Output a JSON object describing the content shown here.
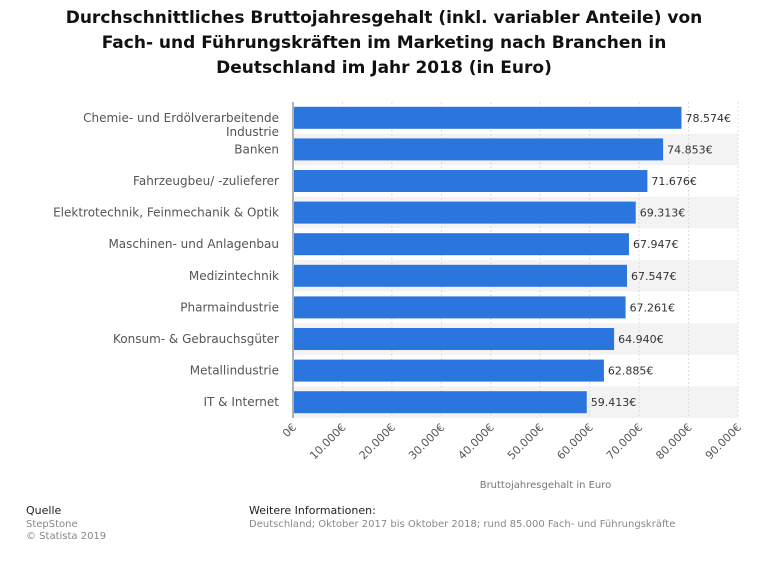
{
  "title_lines": [
    "Durchschnittliches Bruttojahresgehalt (inkl. variabler Anteile) von",
    "Fach- und Führungskräften im Marketing nach Branchen in",
    "Deutschland im Jahr 2018 (in Euro)"
  ],
  "chart_data": {
    "type": "bar",
    "orientation": "horizontal",
    "categories": [
      [
        "Chemie- und Erdölverarbeitende",
        "Industrie"
      ],
      [
        "Banken"
      ],
      [
        "Fahrzeugbeu/ -zulieferer"
      ],
      [
        "Elektrotechnik, Feinmechanik & Optik"
      ],
      [
        "Maschinen- und Anlagenbau"
      ],
      [
        "Medizintechnik"
      ],
      [
        "Pharmaindustrie"
      ],
      [
        "Konsum- & Gebrauchsgüter"
      ],
      [
        "Metallindustrie"
      ],
      [
        "IT & Internet"
      ]
    ],
    "values": [
      78574,
      74853,
      71676,
      69313,
      67947,
      67547,
      67261,
      64940,
      62885,
      59413
    ],
    "value_labels": [
      "78.574€",
      "74.853€",
      "71.676€",
      "69.313€",
      "67.947€",
      "67.547€",
      "67.261€",
      "64.940€",
      "62.885€",
      "59.413€"
    ],
    "xlim": [
      0,
      90000
    ],
    "x_ticks": [
      0,
      10000,
      20000,
      30000,
      40000,
      50000,
      60000,
      70000,
      80000,
      90000
    ],
    "x_tick_labels": [
      "0€",
      "10.000€",
      "20.000€",
      "30.000€",
      "40.000€",
      "50.000€",
      "60.000€",
      "70.000€",
      "80.000€",
      "90.000€"
    ],
    "xlabel": "Bruttojahresgehalt in Euro",
    "ylabel": "",
    "grid": true,
    "bar_color": "#2a75de"
  },
  "footer": {
    "source_head": "Quelle",
    "source_lines": [
      "StepStone",
      "© Statista 2019"
    ],
    "info_head": "Weitere Informationen:",
    "info_text": "Deutschland; Oktober 2017 bis Oktober 2018; rund 85.000 Fach- und Führungskräfte"
  }
}
